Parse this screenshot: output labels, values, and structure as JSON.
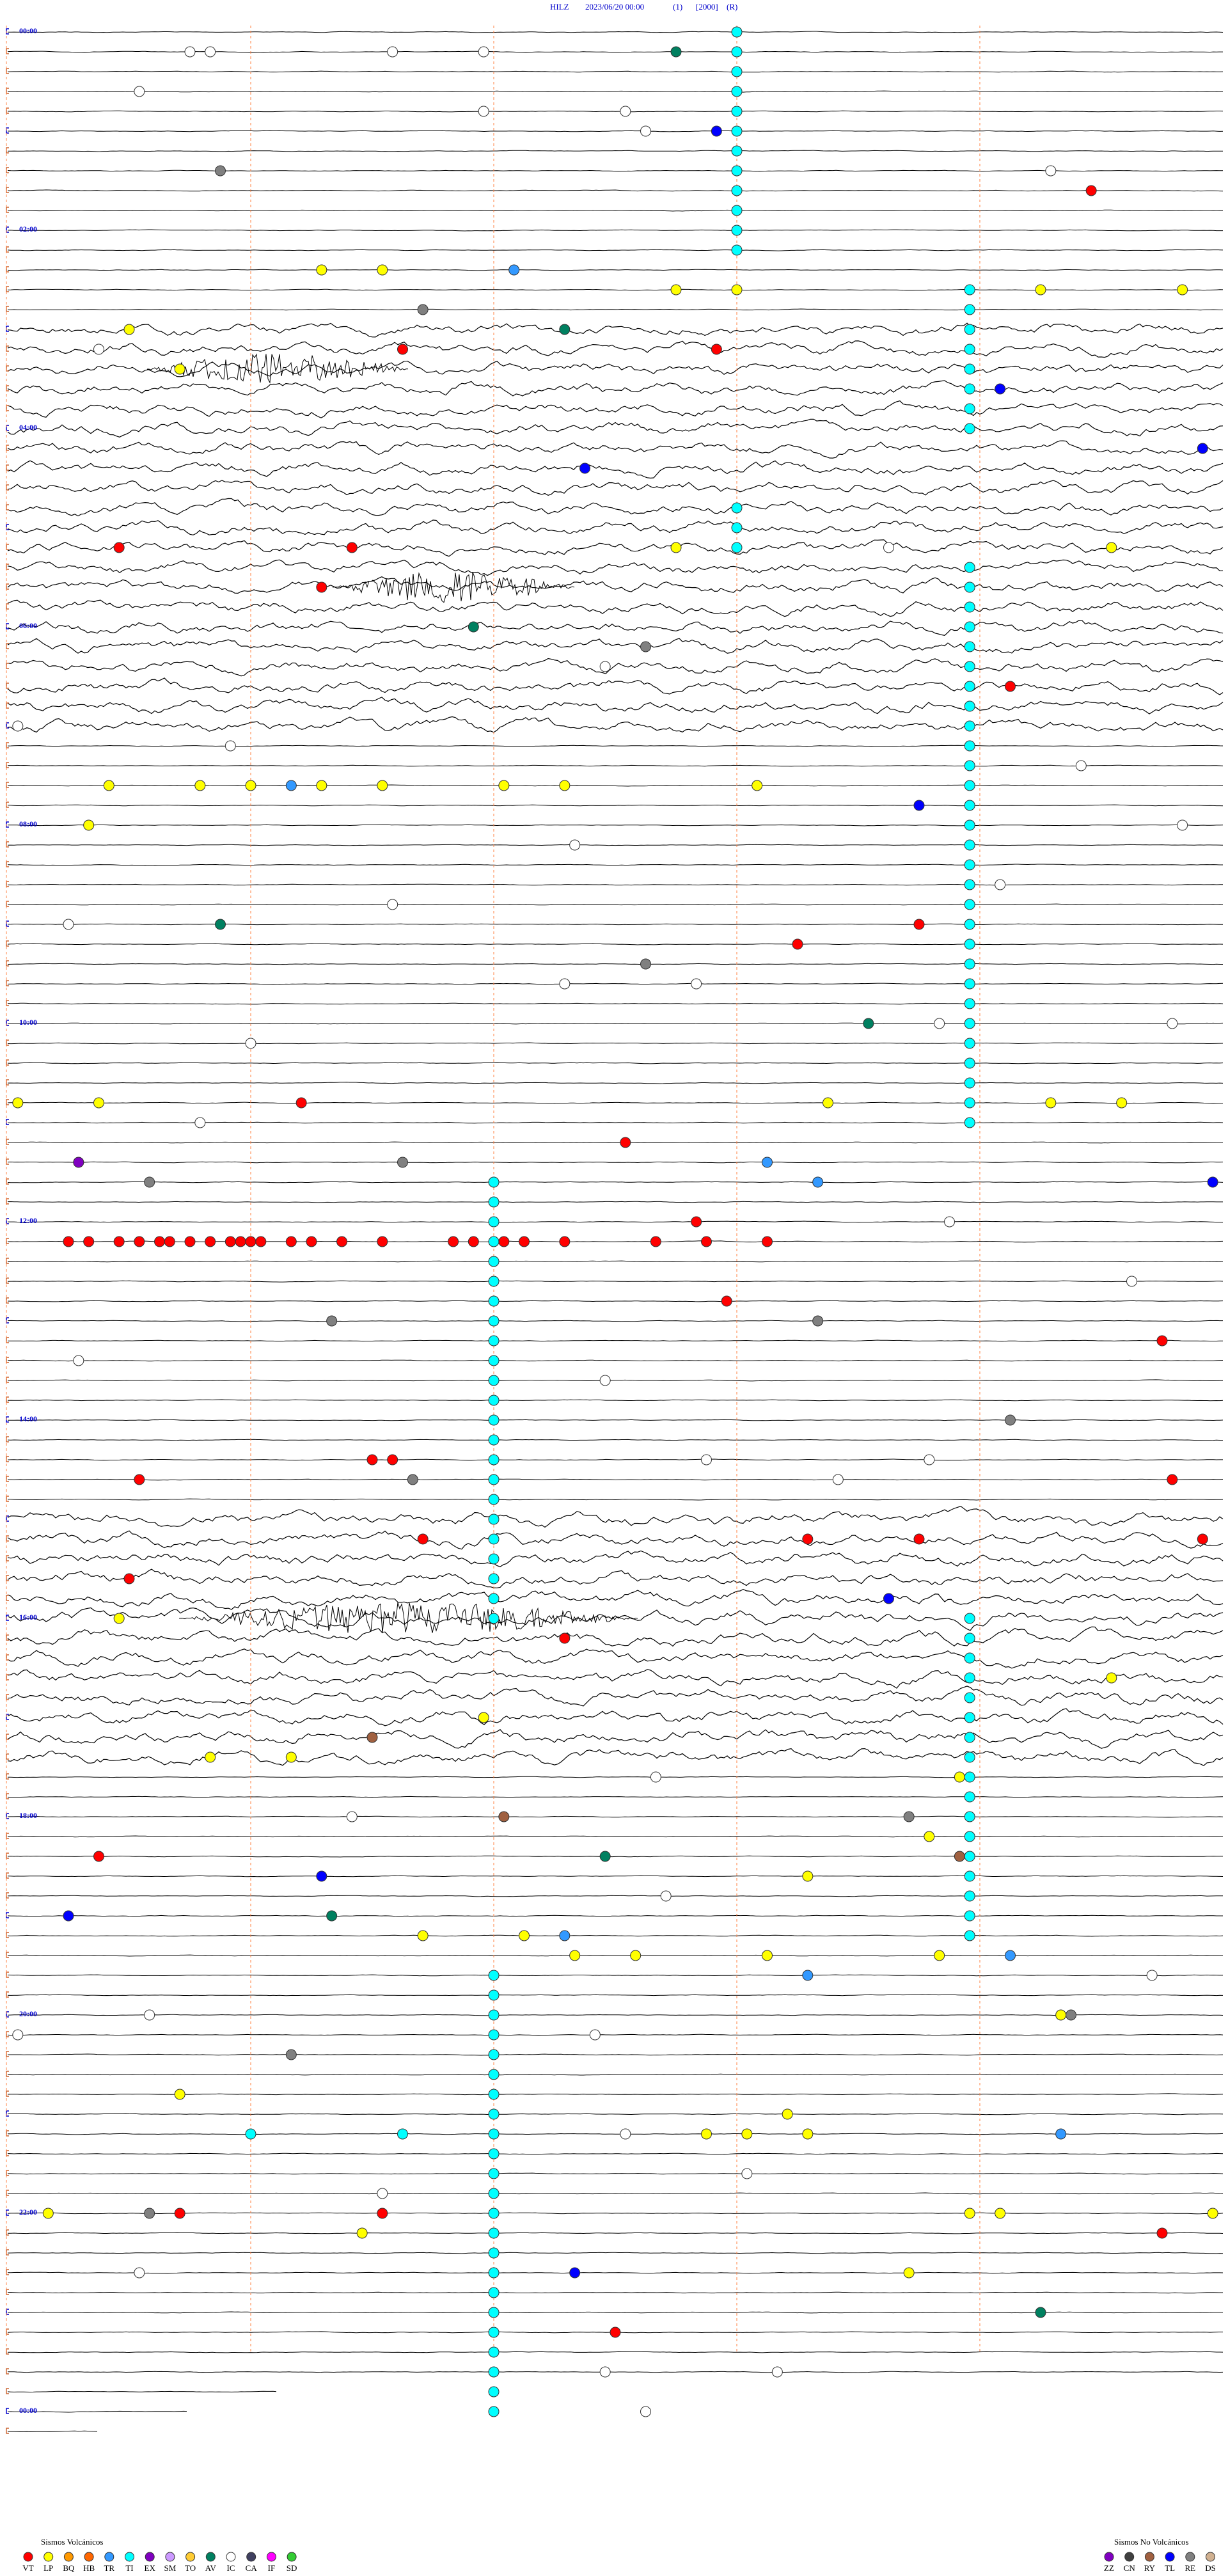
{
  "header": {
    "station": "HILZ",
    "date": "2023/06/20 00:00",
    "flags": [
      "(1)",
      "[2000]",
      "(R)"
    ]
  },
  "time_labels": [
    "00:00",
    "02:00",
    "04:00",
    "06:00",
    "08:00",
    "10:00",
    "12:00",
    "14:00",
    "16:00",
    "18:00",
    "20:00",
    "22:00",
    "00:00"
  ],
  "legend_volcanic": {
    "title": "Sismos Volcánicos",
    "items": [
      {
        "code": "VT",
        "color": "#ff0000"
      },
      {
        "code": "LP",
        "color": "#ffff00"
      },
      {
        "code": "BQ",
        "color": "#ff9900"
      },
      {
        "code": "HB",
        "color": "#ff6600"
      },
      {
        "code": "TR",
        "color": "#3399ff"
      },
      {
        "code": "TI",
        "color": "#00ffff"
      },
      {
        "code": "EX",
        "color": "#8000c0"
      },
      {
        "code": "SM",
        "color": "#cc99ff"
      },
      {
        "code": "TO",
        "color": "#ffcc33"
      },
      {
        "code": "AV",
        "color": "#008060"
      },
      {
        "code": "IC",
        "color": "#ffffff"
      },
      {
        "code": "CA",
        "color": "#404060"
      },
      {
        "code": "IF",
        "color": "#ff00ff"
      },
      {
        "code": "SD",
        "color": "#33cc33"
      }
    ]
  },
  "legend_non_volcanic": {
    "title": "Sismos No Volcánicos",
    "items": [
      {
        "code": "ZZ",
        "color": "#8000c0"
      },
      {
        "code": "CN",
        "color": "#404040"
      },
      {
        "code": "RY",
        "color": "#a06040"
      },
      {
        "code": "TL",
        "color": "#0000ff"
      },
      {
        "code": "RE",
        "color": "#808080"
      },
      {
        "code": "DS",
        "color": "#d0b090"
      }
    ]
  },
  "tremors": [
    {
      "type": "TI",
      "start": 7.2,
      "end": 139.2
    },
    {
      "type": "TI",
      "start": 165.5,
      "end": 249.5
    },
    {
      "type": "TI",
      "start": 295.2,
      "end": 319.2
    },
    {
      "type": "TI",
      "start": 333.5,
      "end": 369.5
    },
    {
      "type": "TI",
      "start": 381.5,
      "end": 429.5
    },
    {
      "type": "TI",
      "start": 441.5,
      "end": 669.5
    },
    {
      "type": "TI",
      "start": 700.8,
      "end": 868.8
    },
    {
      "type": "TI",
      "start": 880.8,
      "end": 964.8
    },
    {
      "type": "TI",
      "start": 969.5,
      "end": 1065.5
    },
    {
      "type": "TI",
      "start": 1077.5,
      "end": 1161.5
    },
    {
      "type": "TI",
      "start": 1180.8,
      "end": 1276.8
    },
    {
      "type": "TI",
      "start": 1288.8,
      "end": 1444.8
    }
  ],
  "events": [
    [
      15.8,
      "IC"
    ],
    [
      14,
      "IC"
    ],
    [
      13.8,
      "IC"
    ],
    [
      16.7,
      "IC"
    ],
    [
      18.6,
      "AV"
    ],
    [
      37.3,
      "IC"
    ],
    [
      52.7,
      "IC"
    ],
    [
      54.1,
      "IC"
    ],
    [
      66.3,
      "IC"
    ],
    [
      67,
      "TL"
    ],
    [
      86.1,
      "RE"
    ],
    [
      94.3,
      "IC"
    ],
    [
      106.7,
      "VT"
    ],
    [
      147.1,
      "LP"
    ],
    [
      147.7,
      "LP"
    ],
    [
      149,
      "TR"
    ],
    [
      162.6,
      "LP"
    ],
    [
      163.2,
      "LP"
    ],
    [
      166.2,
      "LP"
    ],
    [
      167.6,
      "LP"
    ],
    [
      172.1,
      "RE"
    ],
    [
      181.2,
      "LP"
    ],
    [
      185.5,
      "AV"
    ],
    [
      199,
      "VT"
    ],
    [
      195.9,
      "VT"
    ],
    [
      205.7,
      "LP"
    ],
    [
      225.8,
      "TL"
    ],
    [
      269.7,
      "TL"
    ],
    [
      263.8,
      "TL"
    ],
    [
      313.1,
      "VT"
    ],
    [
      318.6,
      "LP"
    ],
    [
      322.9,
      "LP"
    ],
    [
      315.4,
      "VT"
    ],
    [
      339.1,
      "VT"
    ],
    [
      364.6,
      "AV"
    ],
    [
      378.3,
      "RE"
    ],
    [
      405.9,
      "VT"
    ],
    [
      457,
      "LP"
    ],
    [
      457.9,
      "LP"
    ],
    [
      458.4,
      "LP"
    ],
    [
      459.1,
      "LP"
    ],
    [
      459.7,
      "LP"
    ],
    [
      460.9,
      "LP"
    ],
    [
      461.5,
      "LP"
    ],
    [
      463.4,
      "LP"
    ],
    [
      458.8,
      "TR"
    ],
    [
      477,
      "TL"
    ],
    [
      480.8,
      "LP"
    ],
    [
      542.1,
      "AV"
    ],
    [
      549,
      "VT"
    ],
    [
      559.8,
      "VT"
    ],
    [
      570.3,
      "RE"
    ],
    [
      608.5,
      "AV"
    ],
    [
      650.9,
      "VT"
    ],
    [
      658.3,
      "LP"
    ],
    [
      659,
      "LP"
    ],
    [
      656.1,
      "LP"
    ],
    [
      648.1,
      "LP"
    ],
    [
      648.9,
      "LP"
    ],
    [
      684.7,
      "EX"
    ],
    [
      687.9,
      "RE"
    ],
    [
      697.4,
      "RE"
    ],
    [
      678.1,
      "VT"
    ],
    [
      691.5,
      "TR"
    ],
    [
      704,
      "TR"
    ],
    [
      707.9,
      "TL"
    ],
    [
      732.6,
      "VT"
    ],
    [
      732.8,
      "VT"
    ],
    [
      733.1,
      "VT"
    ],
    [
      733.3,
      "VT"
    ],
    [
      733.5,
      "VT"
    ],
    [
      733.6,
      "VT"
    ],
    [
      733.8,
      "VT"
    ],
    [
      734,
      "VT"
    ],
    [
      734.2,
      "VT"
    ],
    [
      734.3,
      "VT"
    ],
    [
      734.4,
      "VT"
    ],
    [
      734.5,
      "VT"
    ],
    [
      734.8,
      "VT"
    ],
    [
      735,
      "VT"
    ],
    [
      735.3,
      "VT"
    ],
    [
      735.7,
      "VT"
    ],
    [
      736.4,
      "VT"
    ],
    [
      736.6,
      "VT"
    ],
    [
      736.9,
      "VT"
    ],
    [
      737.1,
      "VT"
    ],
    [
      737.5,
      "VT"
    ],
    [
      738.4,
      "VT"
    ],
    [
      738.9,
      "VT"
    ],
    [
      739.5,
      "VT"
    ],
    [
      726.8,
      "VT"
    ],
    [
      775.1,
      "VT"
    ],
    [
      783.2,
      "RE"
    ],
    [
      788,
      "RE"
    ],
    [
      803.4,
      "VT"
    ],
    [
      849.9,
      "RE"
    ],
    [
      867.6,
      "VT"
    ],
    [
      867.8,
      "VT"
    ],
    [
      877.3,
      "VT"
    ],
    [
      880,
      "RE"
    ],
    [
      887.5,
      "VT"
    ],
    [
      916.1,
      "VT"
    ],
    [
      919.9,
      "VT"
    ],
    [
      921,
      "VT"
    ],
    [
      923.8,
      "VT"
    ],
    [
      937.2,
      "VT"
    ],
    [
      956.7,
      "TL"
    ],
    [
      961.1,
      "LP"
    ],
    [
      977.5,
      "VT"
    ],
    [
      1006.9,
      "LP"
    ],
    [
      1035.6,
      "RY"
    ],
    [
      1024.7,
      "LP"
    ],
    [
      1046,
      "LP"
    ],
    [
      1046.8,
      "LP"
    ],
    [
      1065.4,
      "LP"
    ],
    [
      1088.9,
      "RE"
    ],
    [
      1084.9,
      "RY"
    ],
    [
      1101.1,
      "LP"
    ],
    [
      1104.9,
      "VT"
    ],
    [
      1109.9,
      "AV"
    ],
    [
      1113.4,
      "RY"
    ],
    [
      1123.9,
      "LP"
    ],
    [
      1119.1,
      "TL"
    ],
    [
      1140.6,
      "TL"
    ],
    [
      1143.2,
      "AV"
    ],
    [
      1156.1,
      "LP"
    ],
    [
      1157.1,
      "LP"
    ],
    [
      1157.5,
      "TR"
    ],
    [
      1170.2,
      "LP"
    ],
    [
      1169.6,
      "LP"
    ],
    [
      1171.5,
      "LP"
    ],
    [
      1173.2,
      "LP"
    ],
    [
      1183.9,
      "TR"
    ],
    [
      1173.9,
      "TR"
    ],
    [
      1210.5,
      "RE"
    ],
    [
      1210.4,
      "LP"
    ],
    [
      1226.8,
      "RE"
    ],
    [
      1249.7,
      "LP"
    ],
    [
      1267.7,
      "LP"
    ],
    [
      1278.9,
      "LP"
    ],
    [
      1279.3,
      "LP"
    ],
    [
      1279.9,
      "LP"
    ],
    [
      1282.4,
      "TR"
    ],
    [
      1274.4,
      "TI"
    ],
    [
      1275.9,
      "TI"
    ],
    [
      1320.4,
      "LP"
    ],
    [
      1331.9,
      "LP"
    ],
    [
      1329.5,
      "LP"
    ],
    [
      1329.8,
      "LP"
    ],
    [
      1321.4,
      "RE"
    ],
    [
      1321.7,
      "VT"
    ],
    [
      1323.7,
      "VT"
    ],
    [
      1335.5,
      "LP"
    ],
    [
      1343.4,
      "VT"
    ],
    [
      1364.9,
      "LP"
    ],
    [
      1361.6,
      "TL"
    ],
    [
      1390.2,
      "AV"
    ],
    [
      1398,
      "VT"
    ],
    [
      192.9,
      "IC"
    ],
    [
      320.7,
      "IC"
    ],
    [
      389.9,
      "IC"
    ],
    [
      420.1,
      "IC"
    ],
    [
      434.2,
      "IC"
    ],
    [
      454.6,
      "IC"
    ],
    [
      491.6,
      "IC"
    ],
    [
      497.6,
      "IC"
    ],
    [
      525.8,
      "IC"
    ],
    [
      531.8,
      "IC"
    ],
    [
      540.6,
      "IC"
    ],
    [
      581.5,
      "IC"
    ],
    [
      582.8,
      "IC"
    ],
    [
      614.4,
      "IC"
    ],
    [
      609.2,
      "IC"
    ],
    [
      611.5,
      "IC"
    ],
    [
      661.9,
      "IC"
    ],
    [
      729.3,
      "IC"
    ],
    [
      767.1,
      "IC"
    ],
    [
      804.7,
      "IC"
    ],
    [
      821.9,
      "IC"
    ],
    [
      870.9,
      "IC"
    ],
    [
      873.1,
      "IC"
    ],
    [
      884.2,
      "IC"
    ],
    [
      1062.4,
      "IC"
    ],
    [
      1083.4,
      "IC"
    ],
    [
      1134.5,
      "IC"
    ],
    [
      1201.4,
      "IC"
    ],
    [
      1212.1,
      "IC"
    ],
    [
      1217.8,
      "IC"
    ],
    [
      1187.3,
      "IC"
    ],
    [
      1278.1,
      "IC"
    ],
    [
      1303.3,
      "IC"
    ],
    [
      1311.7,
      "IC"
    ],
    [
      1357.3,
      "IC"
    ],
    [
      1421.9,
      "IC"
    ],
    [
      1446.3,
      "IC"
    ],
    [
      1423.6,
      "IC"
    ]
  ]
}
